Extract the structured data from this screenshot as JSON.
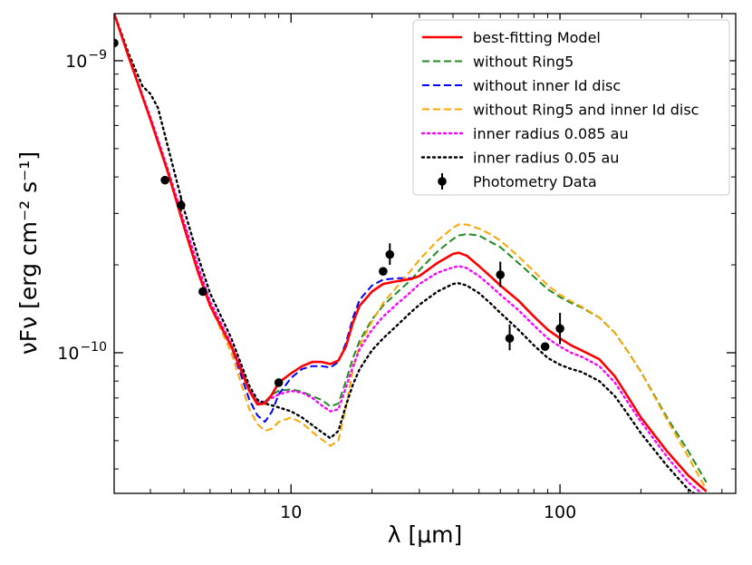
{
  "chart_data": {
    "type": "line",
    "title": "",
    "xlabel": "λ [μm]",
    "ylabel": "νFν [erg cm⁻² s⁻¹]",
    "xscale": "log",
    "yscale": "log",
    "xlim": [
      2.2,
      450
    ],
    "ylim": [
      3.3e-11,
      1.45e-09
    ],
    "x_ticks": [
      {
        "value": 10,
        "label": "10"
      },
      {
        "value": 100,
        "label": "100"
      }
    ],
    "y_ticks": [
      {
        "value": 1e-09,
        "base": "10",
        "exp": "−9"
      },
      {
        "value": 1e-10,
        "base": "10",
        "exp": "−10"
      }
    ],
    "grid": false,
    "legend_position": "top-right",
    "series": [
      {
        "name": "best-fitting Model",
        "color": "#ff0000",
        "style": "solid",
        "x": [
          2.2,
          2.5,
          3.0,
          3.5,
          4.0,
          4.5,
          5.0,
          6.0,
          7.0,
          7.5,
          8.0,
          8.5,
          9.0,
          10,
          11,
          12,
          13,
          14,
          15,
          16,
          17,
          18,
          20,
          22,
          25,
          28,
          30,
          35,
          40,
          42,
          45,
          50,
          55,
          60,
          70,
          80,
          90,
          100,
          110,
          120,
          140,
          160,
          180,
          200,
          250,
          300,
          350
        ],
        "y": [
          1.45e-09,
          1.02e-09,
          6.3e-10,
          4.1e-10,
          2.7e-10,
          1.9e-10,
          1.45e-10,
          1.05e-10,
          7.4e-11,
          6.65e-11,
          6.7e-11,
          7.2e-11,
          7.9e-11,
          8.5e-11,
          9e-11,
          9.3e-11,
          9.3e-11,
          9.15e-11,
          9.4e-11,
          1.05e-10,
          1.27e-10,
          1.45e-10,
          1.62e-10,
          1.72e-10,
          1.76e-10,
          1.79e-10,
          1.83e-10,
          2.03e-10,
          2.18e-10,
          2.2e-10,
          2.15e-10,
          1.98e-10,
          1.83e-10,
          1.7e-10,
          1.51e-10,
          1.33e-10,
          1.2e-10,
          1.12e-10,
          1.06e-10,
          1.02e-10,
          9.5e-11,
          8.3e-11,
          7e-11,
          6e-11,
          4.6e-11,
          3.8e-11,
          3.35e-11
        ]
      },
      {
        "name": "without Ring5",
        "color": "#228b22",
        "style": "dash",
        "x": [
          2.2,
          2.5,
          3.0,
          3.5,
          4.0,
          4.5,
          5.0,
          6.0,
          7.0,
          7.5,
          8.0,
          8.5,
          9.0,
          10,
          11,
          12,
          13,
          14,
          15,
          16,
          17,
          18,
          20,
          22,
          25,
          28,
          30,
          35,
          40,
          42,
          45,
          50,
          55,
          60,
          70,
          80,
          90,
          100,
          110,
          120,
          140,
          160,
          180,
          200,
          250,
          300,
          350
        ],
        "y": [
          1.45e-09,
          1.02e-09,
          6.3e-10,
          4.1e-10,
          2.7e-10,
          1.9e-10,
          1.45e-10,
          1.05e-10,
          7.4e-11,
          6.7e-11,
          6.8e-11,
          7.2e-11,
          7.4e-11,
          7.5e-11,
          7.35e-11,
          7.1e-11,
          6.9e-11,
          6.55e-11,
          6.7e-11,
          8e-11,
          9.6e-11,
          1.1e-10,
          1.3e-10,
          1.45e-10,
          1.62e-10,
          1.78e-10,
          1.92e-10,
          2.22e-10,
          2.45e-10,
          2.52e-10,
          2.55e-10,
          2.52e-10,
          2.4e-10,
          2.3e-10,
          2.03e-10,
          1.82e-10,
          1.65e-10,
          1.55e-10,
          1.48e-10,
          1.43e-10,
          1.32e-10,
          1.17e-10,
          1e-10,
          8.6e-11,
          6e-11,
          4.6e-11,
          3.6e-11
        ]
      },
      {
        "name": "without inner Id disc",
        "color": "#0000ff",
        "style": "dash",
        "x": [
          2.2,
          2.5,
          3.0,
          3.5,
          4.0,
          4.5,
          5.0,
          6.0,
          7.0,
          7.5,
          8.0,
          8.5,
          9.0,
          10,
          11,
          12,
          13,
          14,
          15,
          16,
          17,
          18,
          20,
          22,
          25,
          28,
          30,
          35,
          40,
          42,
          45,
          50,
          55,
          60,
          70,
          80,
          90,
          100,
          110,
          120,
          140,
          160,
          180,
          200,
          250,
          300,
          350
        ],
        "y": [
          1.45e-09,
          1.02e-09,
          6.3e-10,
          4.1e-10,
          2.7e-10,
          1.9e-10,
          1.45e-10,
          1.05e-10,
          6.9e-11,
          6.1e-11,
          5.8e-11,
          6.3e-11,
          7.2e-11,
          8.2e-11,
          8.8e-11,
          9e-11,
          9e-11,
          8.9e-11,
          9.3e-11,
          1.08e-10,
          1.32e-10,
          1.52e-10,
          1.7e-10,
          1.78e-10,
          1.8e-10,
          1.8e-10,
          1.83e-10,
          2.03e-10,
          2.18e-10,
          2.2e-10,
          2.15e-10,
          1.98e-10,
          1.83e-10,
          1.7e-10,
          1.51e-10,
          1.33e-10,
          1.2e-10,
          1.12e-10,
          1.06e-10,
          1.02e-10,
          9.5e-11,
          8.3e-11,
          7e-11,
          6e-11,
          4.6e-11,
          3.8e-11,
          3.35e-11
        ]
      },
      {
        "name": "without Ring5 and inner Id disc",
        "color": "#ffa500",
        "style": "dash",
        "x": [
          2.2,
          2.5,
          3.0,
          3.5,
          4.0,
          4.5,
          5.0,
          6.0,
          7.0,
          7.5,
          8.0,
          8.5,
          9.0,
          10,
          11,
          12,
          13,
          14,
          15,
          16,
          17,
          18,
          20,
          22,
          25,
          28,
          30,
          35,
          40,
          42,
          45,
          50,
          55,
          60,
          70,
          80,
          90,
          100,
          110,
          120,
          140,
          160,
          180,
          200,
          250,
          300,
          350
        ],
        "y": [
          1.45e-09,
          1.02e-09,
          6.3e-10,
          4.1e-10,
          2.7e-10,
          1.9e-10,
          1.45e-10,
          1e-10,
          6.4e-11,
          5.7e-11,
          5.4e-11,
          5.5e-11,
          5.8e-11,
          6e-11,
          5.75e-11,
          5.35e-11,
          5.05e-11,
          4.8e-11,
          5e-11,
          6.5e-11,
          8.8e-11,
          1.06e-10,
          1.28e-10,
          1.48e-10,
          1.7e-10,
          1.92e-10,
          2.08e-10,
          2.42e-10,
          2.68e-10,
          2.75e-10,
          2.75e-10,
          2.66e-10,
          2.55e-10,
          2.42e-10,
          2.14e-10,
          1.9e-10,
          1.7e-10,
          1.58e-10,
          1.5e-10,
          1.44e-10,
          1.32e-10,
          1.17e-10,
          1e-10,
          8.6e-11,
          5.9e-11,
          4.4e-11,
          3.4e-11
        ]
      },
      {
        "name": "inner radius 0.085 au",
        "color": "#ff00ff",
        "style": "dot",
        "x": [
          2.2,
          2.5,
          3.0,
          3.5,
          4.0,
          4.5,
          5.0,
          6.0,
          7.0,
          7.5,
          8.0,
          8.5,
          9.0,
          10,
          11,
          12,
          13,
          14,
          15,
          16,
          17,
          18,
          20,
          22,
          25,
          28,
          30,
          35,
          40,
          42,
          45,
          50,
          55,
          60,
          70,
          80,
          90,
          100,
          110,
          120,
          140,
          160,
          180,
          200,
          250,
          300,
          350
        ],
        "y": [
          1.45e-09,
          1.02e-09,
          6.4e-10,
          4.2e-10,
          2.8e-10,
          2e-10,
          1.5e-10,
          1.07e-10,
          7.5e-11,
          6.8e-11,
          6.8e-11,
          7e-11,
          7.2e-11,
          7.4e-11,
          7.3e-11,
          7e-11,
          6.6e-11,
          6.3e-11,
          6.4e-11,
          7.6e-11,
          9e-11,
          1.03e-10,
          1.2e-10,
          1.33e-10,
          1.48e-10,
          1.62e-10,
          1.72e-10,
          1.88e-10,
          1.96e-10,
          1.98e-10,
          1.95e-10,
          1.83e-10,
          1.7e-10,
          1.58e-10,
          1.4e-10,
          1.24e-10,
          1.12e-10,
          1.05e-10,
          1e-10,
          9.7e-11,
          9e-11,
          7.9e-11,
          6.7e-11,
          5.8e-11,
          4.4e-11,
          3.6e-11,
          3.2e-11
        ]
      },
      {
        "name": "inner radius 0.05 au",
        "color": "#000000",
        "style": "dot",
        "x": [
          2.2,
          2.5,
          2.8,
          3.0,
          3.2,
          3.5,
          4.0,
          4.5,
          5.0,
          6.0,
          7.0,
          7.5,
          8.0,
          8.5,
          9.0,
          10,
          11,
          12,
          13,
          14,
          15,
          16,
          17,
          18,
          20,
          22,
          25,
          28,
          30,
          35,
          40,
          42,
          45,
          50,
          55,
          60,
          70,
          80,
          90,
          100,
          110,
          120,
          140,
          160,
          180,
          200,
          250,
          300,
          350
        ],
        "y": [
          1.45e-09,
          1.05e-09,
          8.2e-10,
          7.7e-10,
          6.9e-10,
          5e-10,
          3.1e-10,
          2.15e-10,
          1.6e-10,
          1.12e-10,
          7.7e-11,
          6.9e-11,
          6.7e-11,
          6.6e-11,
          6.5e-11,
          6.3e-11,
          6e-11,
          5.65e-11,
          5.35e-11,
          5.1e-11,
          5.4e-11,
          6.6e-11,
          7.8e-11,
          8.8e-11,
          1.02e-10,
          1.12e-10,
          1.25e-10,
          1.38e-10,
          1.46e-10,
          1.62e-10,
          1.72e-10,
          1.73e-10,
          1.7e-10,
          1.6e-10,
          1.48e-10,
          1.37e-10,
          1.2e-10,
          1.06e-10,
          9.6e-11,
          9.1e-11,
          8.8e-11,
          8.6e-11,
          8e-11,
          7.1e-11,
          6.1e-11,
          5.3e-11,
          4.1e-11,
          3.4e-11,
          3.1e-11
        ]
      }
    ],
    "photometry": {
      "name": "Photometry Data",
      "color": "#000000",
      "points": [
        {
          "x": 2.2,
          "y": 1.15e-09,
          "yerr_low": 0,
          "yerr_high": 0
        },
        {
          "x": 3.4,
          "y": 3.9e-10,
          "yerr_low": 0,
          "yerr_high": 0
        },
        {
          "x": 3.9,
          "y": 3.2e-10,
          "yerr_low": 1.5e-11,
          "yerr_high": 2e-11
        },
        {
          "x": 4.7,
          "y": 1.62e-10,
          "yerr_low": 0,
          "yerr_high": 0
        },
        {
          "x": 9.0,
          "y": 7.9e-11,
          "yerr_low": 0,
          "yerr_high": 0
        },
        {
          "x": 22,
          "y": 1.9e-10,
          "yerr_low": 0,
          "yerr_high": 0
        },
        {
          "x": 23.3,
          "y": 2.17e-10,
          "yerr_low": 1.7e-11,
          "yerr_high": 2e-11
        },
        {
          "x": 60,
          "y": 1.85e-10,
          "yerr_low": 1.7e-11,
          "yerr_high": 2e-11
        },
        {
          "x": 65,
          "y": 1.12e-10,
          "yerr_low": 1e-11,
          "yerr_high": 1.3e-11
        },
        {
          "x": 88,
          "y": 1.05e-10,
          "yerr_low": 0,
          "yerr_high": 0
        },
        {
          "x": 100,
          "y": 1.21e-10,
          "yerr_low": 1.4e-11,
          "yerr_high": 1.6e-11
        }
      ]
    }
  }
}
